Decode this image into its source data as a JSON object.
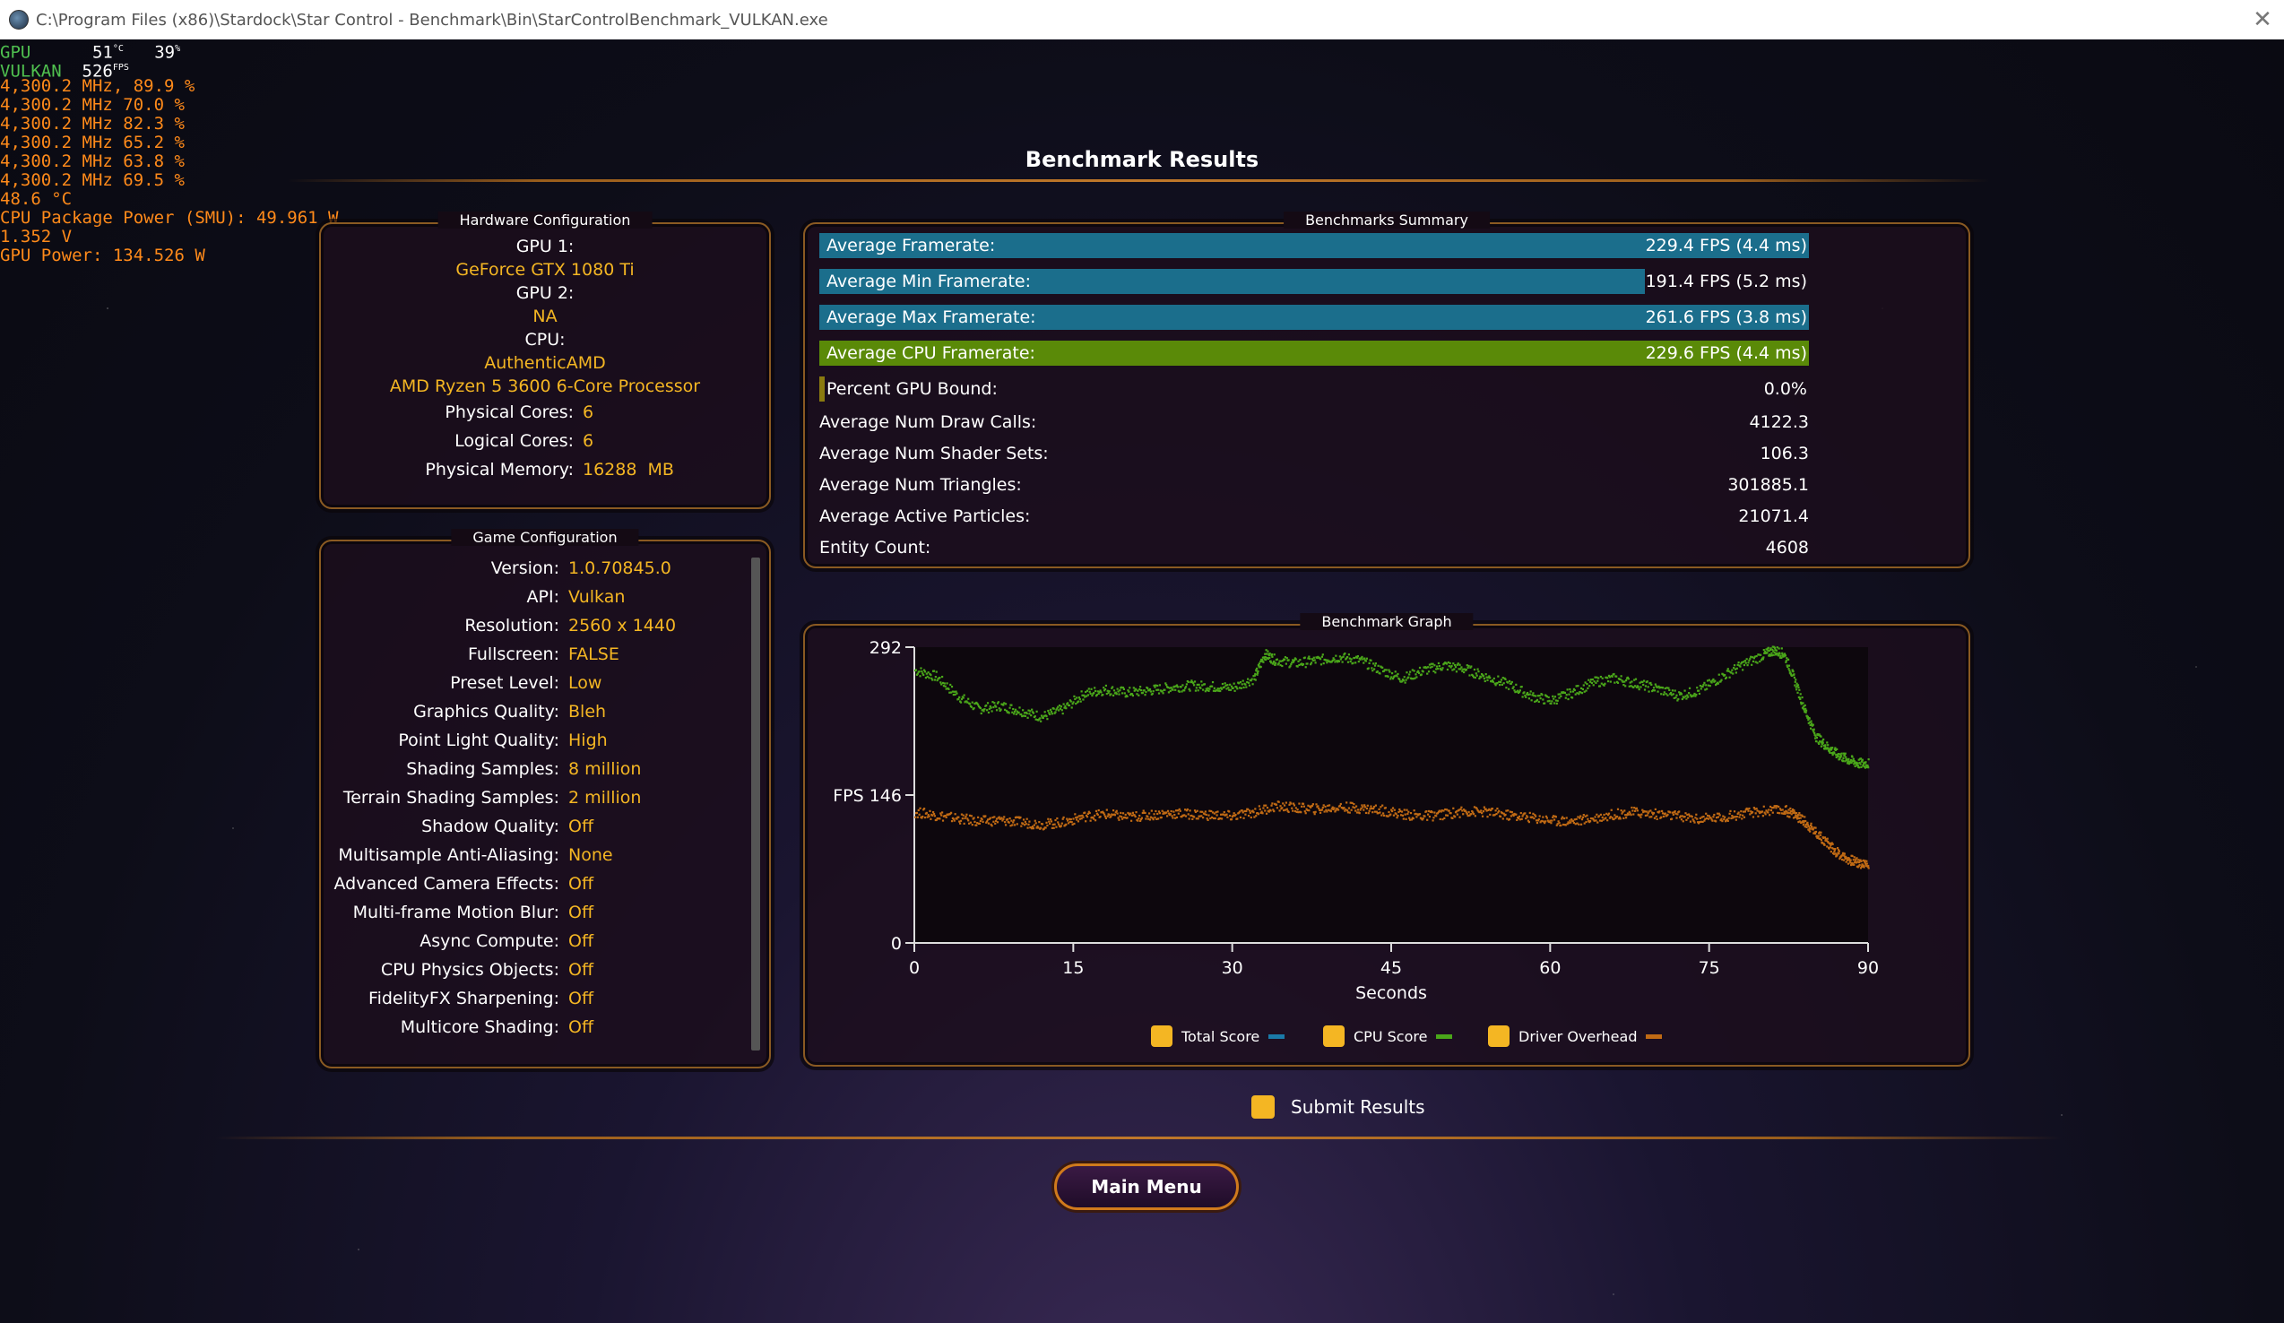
{
  "window": {
    "title": "C:\\Program Files (x86)\\Stardock\\Star Control - Benchmark\\Bin\\StarControlBenchmark_VULKAN.exe"
  },
  "osd": {
    "gpu_label": "GPU",
    "gpu_temp": "51",
    "gpu_temp_unit": "°C",
    "gpu_load": "39",
    "gpu_load_unit": "%",
    "api_label": "VULKAN",
    "fps": "526",
    "fps_unit": "FPS",
    "lines": [
      "4,300.2 MHz, 89.9 %",
      "4,300.2 MHz 70.0 %",
      "4,300.2 MHz 82.3 %",
      "4,300.2 MHz 65.2 %",
      "4,300.2 MHz 63.8 %",
      "4,300.2 MHz 69.5 %",
      "48.6 °C",
      "CPU Package Power (SMU): 49.961 W",
      "1.352 V",
      "GPU Power: 134.526 W"
    ]
  },
  "page_title": "Benchmark Results",
  "hardware": {
    "title": "Hardware Configuration",
    "gpu1_label": "GPU 1:",
    "gpu1": "GeForce GTX 1080 Ti",
    "gpu2_label": "GPU 2:",
    "gpu2": "NA",
    "cpu_label": "CPU:",
    "cpu_vendor": "AuthenticAMD",
    "cpu_name": "AMD Ryzen 5 3600 6-Core Processor",
    "physical_cores_label": "Physical Cores:",
    "physical_cores": "6",
    "logical_cores_label": "Logical Cores:",
    "logical_cores": "6",
    "memory_label": "Physical Memory:",
    "memory": "16288  MB"
  },
  "game": {
    "title": "Game Configuration",
    "items": [
      {
        "k": "Version:",
        "v": "1.0.70845.0"
      },
      {
        "k": "API:",
        "v": "Vulkan"
      },
      {
        "k": "Resolution:",
        "v": "2560 x 1440"
      },
      {
        "k": "Fullscreen:",
        "v": "FALSE"
      },
      {
        "k": "Preset Level:",
        "v": "Low"
      },
      {
        "k": "Graphics Quality:",
        "v": "Bleh"
      },
      {
        "k": "Point Light Quality:",
        "v": "High"
      },
      {
        "k": "Shading Samples:",
        "v": "8 million"
      },
      {
        "k": "Terrain Shading Samples:",
        "v": "2 million"
      },
      {
        "k": "Shadow Quality:",
        "v": "Off"
      },
      {
        "k": "Multisample Anti-Aliasing:",
        "v": "None"
      },
      {
        "k": "Advanced Camera Effects:",
        "v": "Off"
      },
      {
        "k": "Multi-frame Motion Blur:",
        "v": "Off"
      },
      {
        "k": "Async Compute:",
        "v": "Off"
      },
      {
        "k": "CPU Physics Objects:",
        "v": "Off"
      },
      {
        "k": "FidelityFX Sharpening:",
        "v": "Off"
      },
      {
        "k": "Multicore Shading:",
        "v": "Off"
      }
    ]
  },
  "summary": {
    "title": "Benchmarks Summary",
    "bars": [
      {
        "label": "Average Framerate:",
        "value": "229.4 FPS (4.4 ms)",
        "fraction": 1.0,
        "color": "#1b6e8c"
      },
      {
        "label": "Average Min Framerate:",
        "value": "191.4 FPS (5.2 ms)",
        "fraction": 0.834,
        "color": "#1b6e8c"
      },
      {
        "label": "Average Max Framerate:",
        "value": "261.6 FPS (3.8 ms)",
        "fraction": 1.0,
        "color": "#1b6e8c"
      },
      {
        "label": "Average CPU Framerate:",
        "value": "229.6 FPS (4.4 ms)",
        "fraction": 1.0,
        "color": "#5a8a08"
      },
      {
        "label": "Percent GPU Bound:",
        "value": "0.0%",
        "fraction": 0.0,
        "color": "#8a7a10"
      }
    ],
    "stats": [
      {
        "label": "Average Num Draw Calls:",
        "value": "4122.3"
      },
      {
        "label": "Average Num Shader Sets:",
        "value": "106.3"
      },
      {
        "label": "Average Num Triangles:",
        "value": "301885.1"
      },
      {
        "label": "Average Active Particles:",
        "value": "21071.4"
      },
      {
        "label": "Entity Count:",
        "value": "4608"
      }
    ]
  },
  "graph": {
    "title": "Benchmark Graph",
    "legend": [
      {
        "label": "Total Score",
        "color": "#1a7aa8"
      },
      {
        "label": "CPU Score",
        "color": "#4aa61a"
      },
      {
        "label": "Driver Overhead",
        "color": "#c06a14"
      }
    ]
  },
  "chart_data": {
    "type": "scatter",
    "title": "",
    "xlabel": "Seconds",
    "ylabel": "FPS",
    "xlim": [
      0,
      90
    ],
    "ylim": [
      0,
      292
    ],
    "xticks": [
      "0",
      "15",
      "30",
      "45",
      "60",
      "75",
      "90"
    ],
    "yticks": [
      "0",
      "146",
      "292"
    ],
    "ytick_prefix_mid": "FPS ",
    "series": [
      {
        "name": "CPU Score",
        "color": "#4aa61a",
        "x": [
          0,
          2,
          4,
          6,
          8,
          10,
          12,
          14,
          16,
          18,
          20,
          22,
          24,
          26,
          28,
          30,
          32,
          33,
          34,
          36,
          38,
          40,
          42,
          44,
          46,
          48,
          50,
          52,
          54,
          56,
          58,
          60,
          62,
          64,
          66,
          68,
          70,
          72,
          74,
          76,
          78,
          80,
          81,
          82,
          83,
          84,
          85,
          86,
          87,
          88,
          89,
          90
        ],
        "y": [
          270,
          264,
          245,
          232,
          235,
          230,
          224,
          232,
          247,
          251,
          248,
          250,
          253,
          255,
          254,
          253,
          262,
          286,
          280,
          277,
          280,
          283,
          280,
          270,
          262,
          270,
          275,
          271,
          263,
          256,
          245,
          240,
          248,
          258,
          262,
          257,
          252,
          245,
          250,
          263,
          275,
          285,
          290,
          286,
          260,
          230,
          205,
          195,
          187,
          182,
          178,
          178
        ]
      },
      {
        "name": "Driver Overhead",
        "color": "#c06a14",
        "x": [
          0,
          2,
          4,
          6,
          8,
          10,
          12,
          14,
          16,
          18,
          20,
          22,
          24,
          26,
          28,
          30,
          32,
          34,
          36,
          38,
          40,
          42,
          44,
          46,
          48,
          50,
          52,
          54,
          56,
          58,
          60,
          62,
          64,
          66,
          68,
          70,
          72,
          74,
          76,
          78,
          80,
          82,
          83,
          84,
          85,
          86,
          87,
          88,
          89,
          90
        ],
        "y": [
          130,
          127,
          124,
          121,
          122,
          120,
          118,
          120,
          126,
          128,
          125,
          127,
          129,
          128,
          127,
          126,
          130,
          136,
          134,
          133,
          135,
          134,
          132,
          128,
          126,
          128,
          131,
          130,
          127,
          125,
          122,
          121,
          124,
          128,
          130,
          128,
          126,
          123,
          125,
          128,
          131,
          132,
          128,
          120,
          110,
          100,
          90,
          84,
          80,
          78
        ]
      }
    ]
  },
  "submit_label": "Submit Results",
  "main_menu_label": "Main Menu"
}
